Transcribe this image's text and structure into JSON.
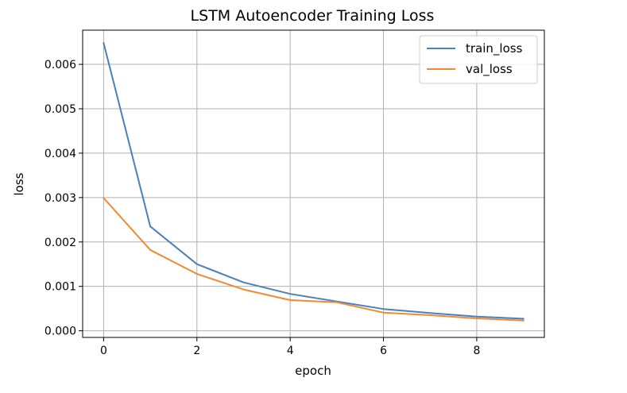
{
  "chart_data": {
    "type": "line",
    "title": "LSTM Autoencoder Training Loss",
    "xlabel": "epoch",
    "ylabel": "loss",
    "x": [
      0,
      1,
      2,
      3,
      4,
      5,
      6,
      7,
      8,
      9
    ],
    "xticks": [
      0,
      2,
      4,
      6,
      8
    ],
    "xtick_labels": [
      "0",
      "2",
      "4",
      "6",
      "8"
    ],
    "yticks": [
      0,
      0.001,
      0.002,
      0.003,
      0.004,
      0.005,
      0.006
    ],
    "ytick_labels": [
      "0.000",
      "0.001",
      "0.002",
      "0.003",
      "0.004",
      "0.005",
      "0.006"
    ],
    "xlim": [
      -0.45,
      9.45
    ],
    "ylim": [
      -0.00015,
      0.00677
    ],
    "grid": true,
    "legend_position": "top-right",
    "series": [
      {
        "name": "train_loss",
        "color": "#4c80b8",
        "values": [
          0.00648,
          0.00235,
          0.0015,
          0.00109,
          0.00083,
          0.00066,
          0.00049,
          0.0004,
          0.00032,
          0.00027
        ]
      },
      {
        "name": "val_loss",
        "color": "#f08a35",
        "values": [
          0.00299,
          0.00182,
          0.00128,
          0.00093,
          0.00069,
          0.00064,
          0.00041,
          0.00035,
          0.00028,
          0.00023
        ]
      }
    ]
  }
}
